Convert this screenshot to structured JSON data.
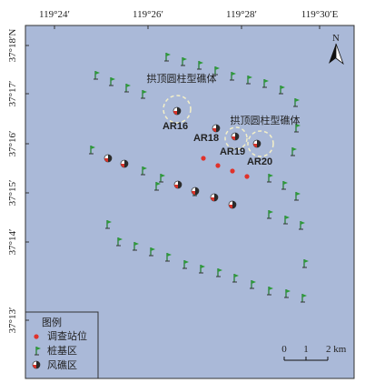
{
  "axes": {
    "x_labels": [
      "119°24′",
      "119°26′",
      "119°28′",
      "119°30′E"
    ],
    "y_labels": [
      "37°18′N",
      "37°17′",
      "37°16′",
      "37°15′",
      "37°14′",
      "37°13′"
    ]
  },
  "north": "N",
  "annotations": [
    "拱顶圆柱型礁体",
    "拱顶圆柱型礁体"
  ],
  "sites": [
    "AR16",
    "AR18",
    "AR19",
    "AR20"
  ],
  "legend": {
    "title": "图例",
    "items": [
      "调查站位",
      "桩基区",
      "风礁区"
    ]
  },
  "scale": {
    "labels": [
      "0",
      "1",
      "2 km"
    ]
  }
}
